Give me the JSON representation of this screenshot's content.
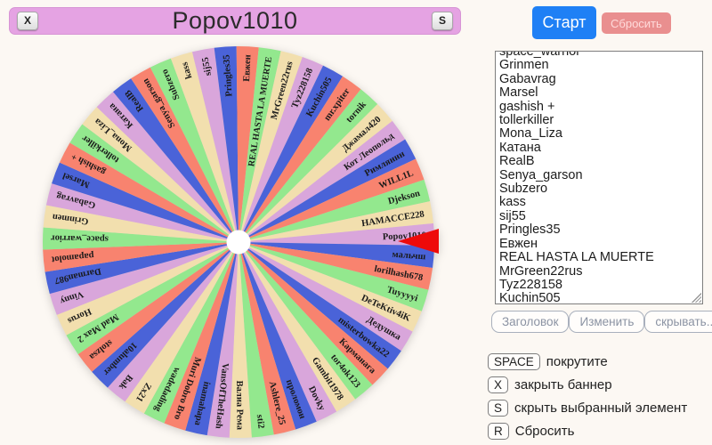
{
  "banner": {
    "title": "Popov1010",
    "close_key": "X",
    "hide_key": "S"
  },
  "controls": {
    "start_label": "Старт",
    "reset_label": "Сбросить"
  },
  "participants": [
    "space_warrior",
    "Grinmen",
    "Gabavrag",
    "Marsel",
    "gashish +",
    "tollerkiller",
    "Mona_Liza",
    "Катана",
    "RealB",
    "Senya_garson",
    "Subzero",
    "kass",
    "sij55",
    "Pringles35",
    "Евжен",
    "REAL HASTA LA MUERTE",
    "MrGreen22rus",
    "Tyz228158",
    "Kuchin505"
  ],
  "list_actions": {
    "header_label": "Заголовок",
    "edit_label": "Изменить",
    "hide_label": "скрывать..."
  },
  "hints": [
    {
      "key": "SPACE",
      "label": "покрутите"
    },
    {
      "key": "X",
      "label": "закрыть баннер"
    },
    {
      "key": "S",
      "label": "скрыть выбранный элемент"
    },
    {
      "key": "R",
      "label": "Сбросить"
    }
  ],
  "wheel": {
    "selected_name": "Popov1010",
    "pointer_color": "#ee0a0a",
    "hub_color": "#ffffff",
    "palette": [
      "#93e88e",
      "#f2dfae",
      "#d9a6db",
      "#4a63d8",
      "#f8836f"
    ],
    "segments": [
      "Popov1010",
      "мальчш",
      "lorilhash678",
      "Tuyyyyi",
      "DeTeKtiv4iK",
      "Дедушка",
      "misterbowka22",
      "Карманага",
      "tor4ok123",
      "Gambit1978",
      "Dovky",
      "проломон",
      "Ashlere_25",
      "sti2",
      "Валиа Рема",
      "VansOfTheHash",
      "inamahapa",
      "Muri Dobro Bro",
      "wadedading",
      "Zx21",
      "Bak",
      "10alumber",
      "stolzsa",
      "Mad Max 2",
      "Horus",
      "Vinny",
      "Darman987",
      "papamolot",
      "space_warrior",
      "Grinmen",
      "Gabavrag",
      "Marsel",
      "gashish +",
      "tollerkiller",
      "Mona_Liza",
      "Катана",
      "RealB",
      "Senya_garson",
      "Subzero",
      "kass",
      "sij55",
      "Pringles35",
      "Евжен",
      "REAL HASTA LA MUERTE",
      "MrGreen22rus",
      "Tyz228158",
      "Kuchin505",
      "mr.xpiter",
      "tornik",
      "Джамал420",
      "Кот Леопольд",
      "Римлянин",
      "WILL1L",
      "Djekson",
      "HAMACCE228"
    ]
  }
}
